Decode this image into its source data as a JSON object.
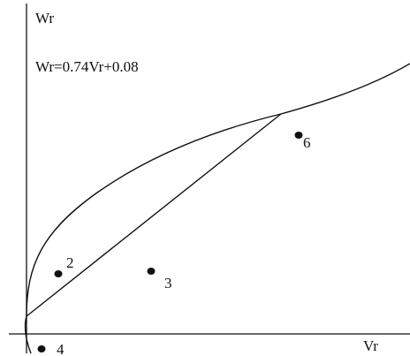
{
  "axes": {
    "y_label": "Wr",
    "x_label": "Vr"
  },
  "equation": "Wr=0.74Vr+0.08",
  "points": [
    {
      "label": "2"
    },
    {
      "label": "3"
    },
    {
      "label": "6"
    },
    {
      "label": "4"
    }
  ],
  "colors": {
    "ink": "#111111",
    "background": "#ffffff"
  }
}
